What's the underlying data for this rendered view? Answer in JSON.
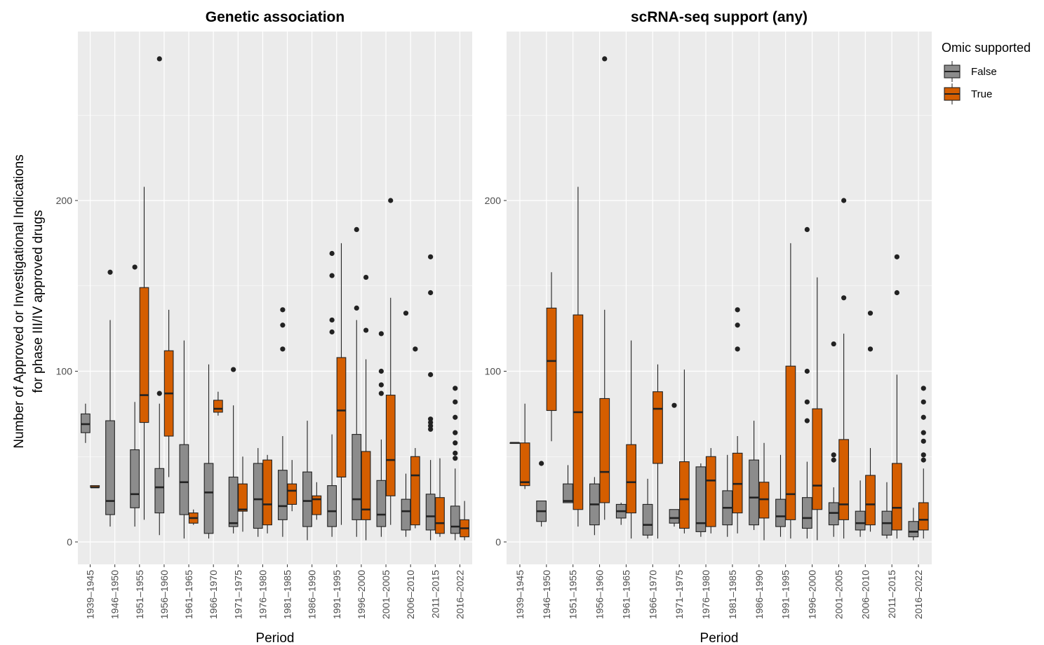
{
  "chart_data": {
    "type": "boxplot",
    "ylabel_line1": "Number of Approved or Investigational Indications",
    "ylabel_line2": "for phase III/IV approved drugs",
    "xlabel": "Period",
    "ylim": [
      0,
      290
    ],
    "yticks": [
      0,
      100,
      200
    ],
    "categories": [
      "1939–1945",
      "1946–1950",
      "1951–1955",
      "1956–1960",
      "1961–1965",
      "1966–1970",
      "1971–1975",
      "1976–1980",
      "1981–1985",
      "1986–1990",
      "1991–1995",
      "1996–2000",
      "2001–2005",
      "2006–2010",
      "2011–2015",
      "2016–2022"
    ],
    "legend": {
      "title": "Omic supported",
      "position": "right",
      "entries": [
        {
          "label": "False",
          "color": "#8c8c8c"
        },
        {
          "label": "True",
          "color": "#d55e00"
        }
      ]
    },
    "colors": {
      "false": "#8c8c8c",
      "true": "#d55e00",
      "panel_bg": "#ebebeb",
      "grid": "#ffffff"
    },
    "panels": [
      {
        "title": "Genetic association",
        "groups": [
          {
            "false": {
              "min": 58,
              "q1": 64,
              "median": 69,
              "q3": 75,
              "max": 81,
              "out": []
            },
            "true": {
              "min": 32,
              "q1": 32,
              "median": 32,
              "q3": 33,
              "max": 33,
              "out": []
            }
          },
          {
            "false": {
              "min": 9,
              "q1": 16,
              "median": 24,
              "q3": 71,
              "max": 130,
              "out": [
                158
              ]
            },
            "true": null
          },
          {
            "false": {
              "min": 9,
              "q1": 20,
              "median": 28,
              "q3": 54,
              "max": 82,
              "out": [
                161
              ]
            },
            "true": {
              "min": 13,
              "q1": 70,
              "median": 86,
              "q3": 149,
              "max": 208,
              "out": []
            }
          },
          {
            "false": {
              "min": 4,
              "q1": 17,
              "median": 32,
              "q3": 43,
              "max": 81,
              "out": [
                87,
                283
              ]
            },
            "true": {
              "min": 38,
              "q1": 62,
              "median": 87,
              "q3": 112,
              "max": 136,
              "out": []
            }
          },
          {
            "false": {
              "min": 2,
              "q1": 16,
              "median": 35,
              "q3": 57,
              "max": 118,
              "out": []
            },
            "true": {
              "min": 10,
              "q1": 11,
              "median": 14,
              "q3": 17,
              "max": 19,
              "out": []
            }
          },
          {
            "false": {
              "min": 2,
              "q1": 5,
              "median": 29,
              "q3": 46,
              "max": 104,
              "out": []
            },
            "true": {
              "min": 74,
              "q1": 76,
              "median": 78,
              "q3": 83,
              "max": 88,
              "out": []
            }
          },
          {
            "false": {
              "min": 5,
              "q1": 9,
              "median": 11,
              "q3": 38,
              "max": 80,
              "out": [
                101
              ]
            },
            "true": {
              "min": 6,
              "q1": 18,
              "median": 19,
              "q3": 34,
              "max": 50,
              "out": []
            }
          },
          {
            "false": {
              "min": 3,
              "q1": 8,
              "median": 25,
              "q3": 46,
              "max": 55,
              "out": []
            },
            "true": {
              "min": 5,
              "q1": 10,
              "median": 22,
              "q3": 48,
              "max": 51,
              "out": []
            }
          },
          {
            "false": {
              "min": 3,
              "q1": 13,
              "median": 21,
              "q3": 42,
              "max": 62,
              "out": [
                113,
                127,
                136
              ]
            },
            "true": {
              "min": 18,
              "q1": 22,
              "median": 30,
              "q3": 34,
              "max": 48,
              "out": []
            }
          },
          {
            "false": {
              "min": 1,
              "q1": 9,
              "median": 24,
              "q3": 41,
              "max": 71,
              "out": []
            },
            "true": {
              "min": 13,
              "q1": 16,
              "median": 25,
              "q3": 27,
              "max": 35,
              "out": []
            }
          },
          {
            "false": {
              "min": 3,
              "q1": 9,
              "median": 18,
              "q3": 33,
              "max": 63,
              "out": [
                123,
                130,
                156,
                169
              ]
            },
            "true": {
              "min": 10,
              "q1": 38,
              "median": 77,
              "q3": 108,
              "max": 175,
              "out": []
            }
          },
          {
            "false": {
              "min": 3,
              "q1": 13,
              "median": 25,
              "q3": 63,
              "max": 130,
              "out": [
                137,
                183
              ]
            },
            "true": {
              "min": 1,
              "q1": 13,
              "median": 19,
              "q3": 53,
              "max": 107,
              "out": [
                124,
                155
              ]
            }
          },
          {
            "false": {
              "min": 3,
              "q1": 9,
              "median": 16,
              "q3": 36,
              "max": 60,
              "out": [
                87,
                92,
                100,
                122
              ]
            },
            "true": {
              "min": 10,
              "q1": 27,
              "median": 48,
              "q3": 86,
              "max": 143,
              "out": [
                200
              ]
            }
          },
          {
            "false": {
              "min": 3,
              "q1": 7,
              "median": 18,
              "q3": 25,
              "max": 40,
              "out": [
                134
              ]
            },
            "true": {
              "min": 8,
              "q1": 10,
              "median": 39,
              "q3": 50,
              "max": 55,
              "out": [
                113
              ]
            }
          },
          {
            "false": {
              "min": 1,
              "q1": 7,
              "median": 15,
              "q3": 28,
              "max": 48,
              "out": [
                66,
                68,
                70,
                72,
                98,
                146,
                167
              ]
            },
            "true": {
              "min": 3,
              "q1": 5,
              "median": 11,
              "q3": 26,
              "max": 49,
              "out": []
            }
          },
          {
            "false": {
              "min": 1,
              "q1": 5,
              "median": 9,
              "q3": 21,
              "max": 43,
              "out": [
                49,
                52,
                58,
                64,
                73,
                82,
                90
              ]
            },
            "true": {
              "min": 1,
              "q1": 3,
              "median": 8,
              "q3": 13,
              "max": 24,
              "out": []
            }
          }
        ]
      },
      {
        "title": "scRNA-seq support (any)",
        "groups": [
          {
            "false": {
              "min": 58,
              "q1": 58,
              "median": 58,
              "q3": 58,
              "max": 58,
              "out": []
            },
            "true": {
              "min": 31,
              "q1": 33,
              "median": 35,
              "q3": 58,
              "max": 81,
              "out": []
            }
          },
          {
            "false": {
              "min": 9,
              "q1": 12,
              "median": 18,
              "q3": 24,
              "max": 24,
              "out": [
                46
              ]
            },
            "true": {
              "min": 59,
              "q1": 77,
              "median": 106,
              "q3": 137,
              "max": 158,
              "out": []
            }
          },
          {
            "false": {
              "min": 23,
              "q1": 23,
              "median": 24,
              "q3": 34,
              "max": 45,
              "out": []
            },
            "true": {
              "min": 9,
              "q1": 19,
              "median": 76,
              "q3": 133,
              "max": 208,
              "out": []
            }
          },
          {
            "false": {
              "min": 4,
              "q1": 10,
              "median": 22,
              "q3": 34,
              "max": 38,
              "out": []
            },
            "true": {
              "min": 13,
              "q1": 23,
              "median": 41,
              "q3": 84,
              "max": 136,
              "out": [
                283
              ]
            }
          },
          {
            "false": {
              "min": 10,
              "q1": 14,
              "median": 18,
              "q3": 22,
              "max": 23,
              "out": []
            },
            "true": {
              "min": 2,
              "q1": 17,
              "median": 35,
              "q3": 57,
              "max": 118,
              "out": []
            }
          },
          {
            "false": {
              "min": 2,
              "q1": 4,
              "median": 10,
              "q3": 22,
              "max": 37,
              "out": []
            },
            "true": {
              "min": 2,
              "q1": 46,
              "median": 78,
              "q3": 88,
              "max": 104,
              "out": []
            }
          },
          {
            "false": {
              "min": 9,
              "q1": 11,
              "median": 14,
              "q3": 19,
              "max": 19,
              "out": [
                80
              ]
            },
            "true": {
              "min": 5,
              "q1": 8,
              "median": 25,
              "q3": 47,
              "max": 101,
              "out": []
            }
          },
          {
            "false": {
              "min": 3,
              "q1": 6,
              "median": 11,
              "q3": 44,
              "max": 46,
              "out": []
            },
            "true": {
              "min": 5,
              "q1": 9,
              "median": 36,
              "q3": 50,
              "max": 55,
              "out": []
            }
          },
          {
            "false": {
              "min": 3,
              "q1": 10,
              "median": 20,
              "q3": 30,
              "max": 51,
              "out": []
            },
            "true": {
              "min": 5,
              "q1": 17,
              "median": 34,
              "q3": 52,
              "max": 62,
              "out": [
                113,
                127,
                136
              ]
            }
          },
          {
            "false": {
              "min": 7,
              "q1": 10,
              "median": 26,
              "q3": 48,
              "max": 71,
              "out": []
            },
            "true": {
              "min": 1,
              "q1": 14,
              "median": 25,
              "q3": 35,
              "max": 58,
              "out": []
            }
          },
          {
            "false": {
              "min": 3,
              "q1": 9,
              "median": 15,
              "q3": 25,
              "max": 51,
              "out": []
            },
            "true": {
              "min": 2,
              "q1": 13,
              "median": 28,
              "q3": 103,
              "max": 175,
              "out": []
            }
          },
          {
            "false": {
              "min": 2,
              "q1": 8,
              "median": 14,
              "q3": 26,
              "max": 47,
              "out": [
                71,
                82,
                100,
                183
              ]
            },
            "true": {
              "min": 1,
              "q1": 19,
              "median": 33,
              "q3": 78,
              "max": 155,
              "out": []
            }
          },
          {
            "false": {
              "min": 3,
              "q1": 10,
              "median": 17,
              "q3": 23,
              "max": 32,
              "out": [
                48,
                51,
                116
              ]
            },
            "true": {
              "min": 2,
              "q1": 13,
              "median": 22,
              "q3": 60,
              "max": 122,
              "out": [
                143,
                200
              ]
            }
          },
          {
            "false": {
              "min": 3,
              "q1": 7,
              "median": 11,
              "q3": 18,
              "max": 36,
              "out": []
            },
            "true": {
              "min": 6,
              "q1": 10,
              "median": 22,
              "q3": 39,
              "max": 55,
              "out": [
                113,
                134
              ]
            }
          },
          {
            "false": {
              "min": 2,
              "q1": 4,
              "median": 11,
              "q3": 18,
              "max": 35,
              "out": []
            },
            "true": {
              "min": 2,
              "q1": 7,
              "median": 20,
              "q3": 46,
              "max": 98,
              "out": [
                146,
                167
              ]
            }
          },
          {
            "false": {
              "min": 1,
              "q1": 3,
              "median": 6,
              "q3": 12,
              "max": 20,
              "out": []
            },
            "true": {
              "min": 2,
              "q1": 7,
              "median": 13,
              "q3": 23,
              "max": 43,
              "out": [
                48,
                51,
                59,
                64,
                73,
                82,
                90
              ]
            }
          }
        ]
      }
    ]
  }
}
